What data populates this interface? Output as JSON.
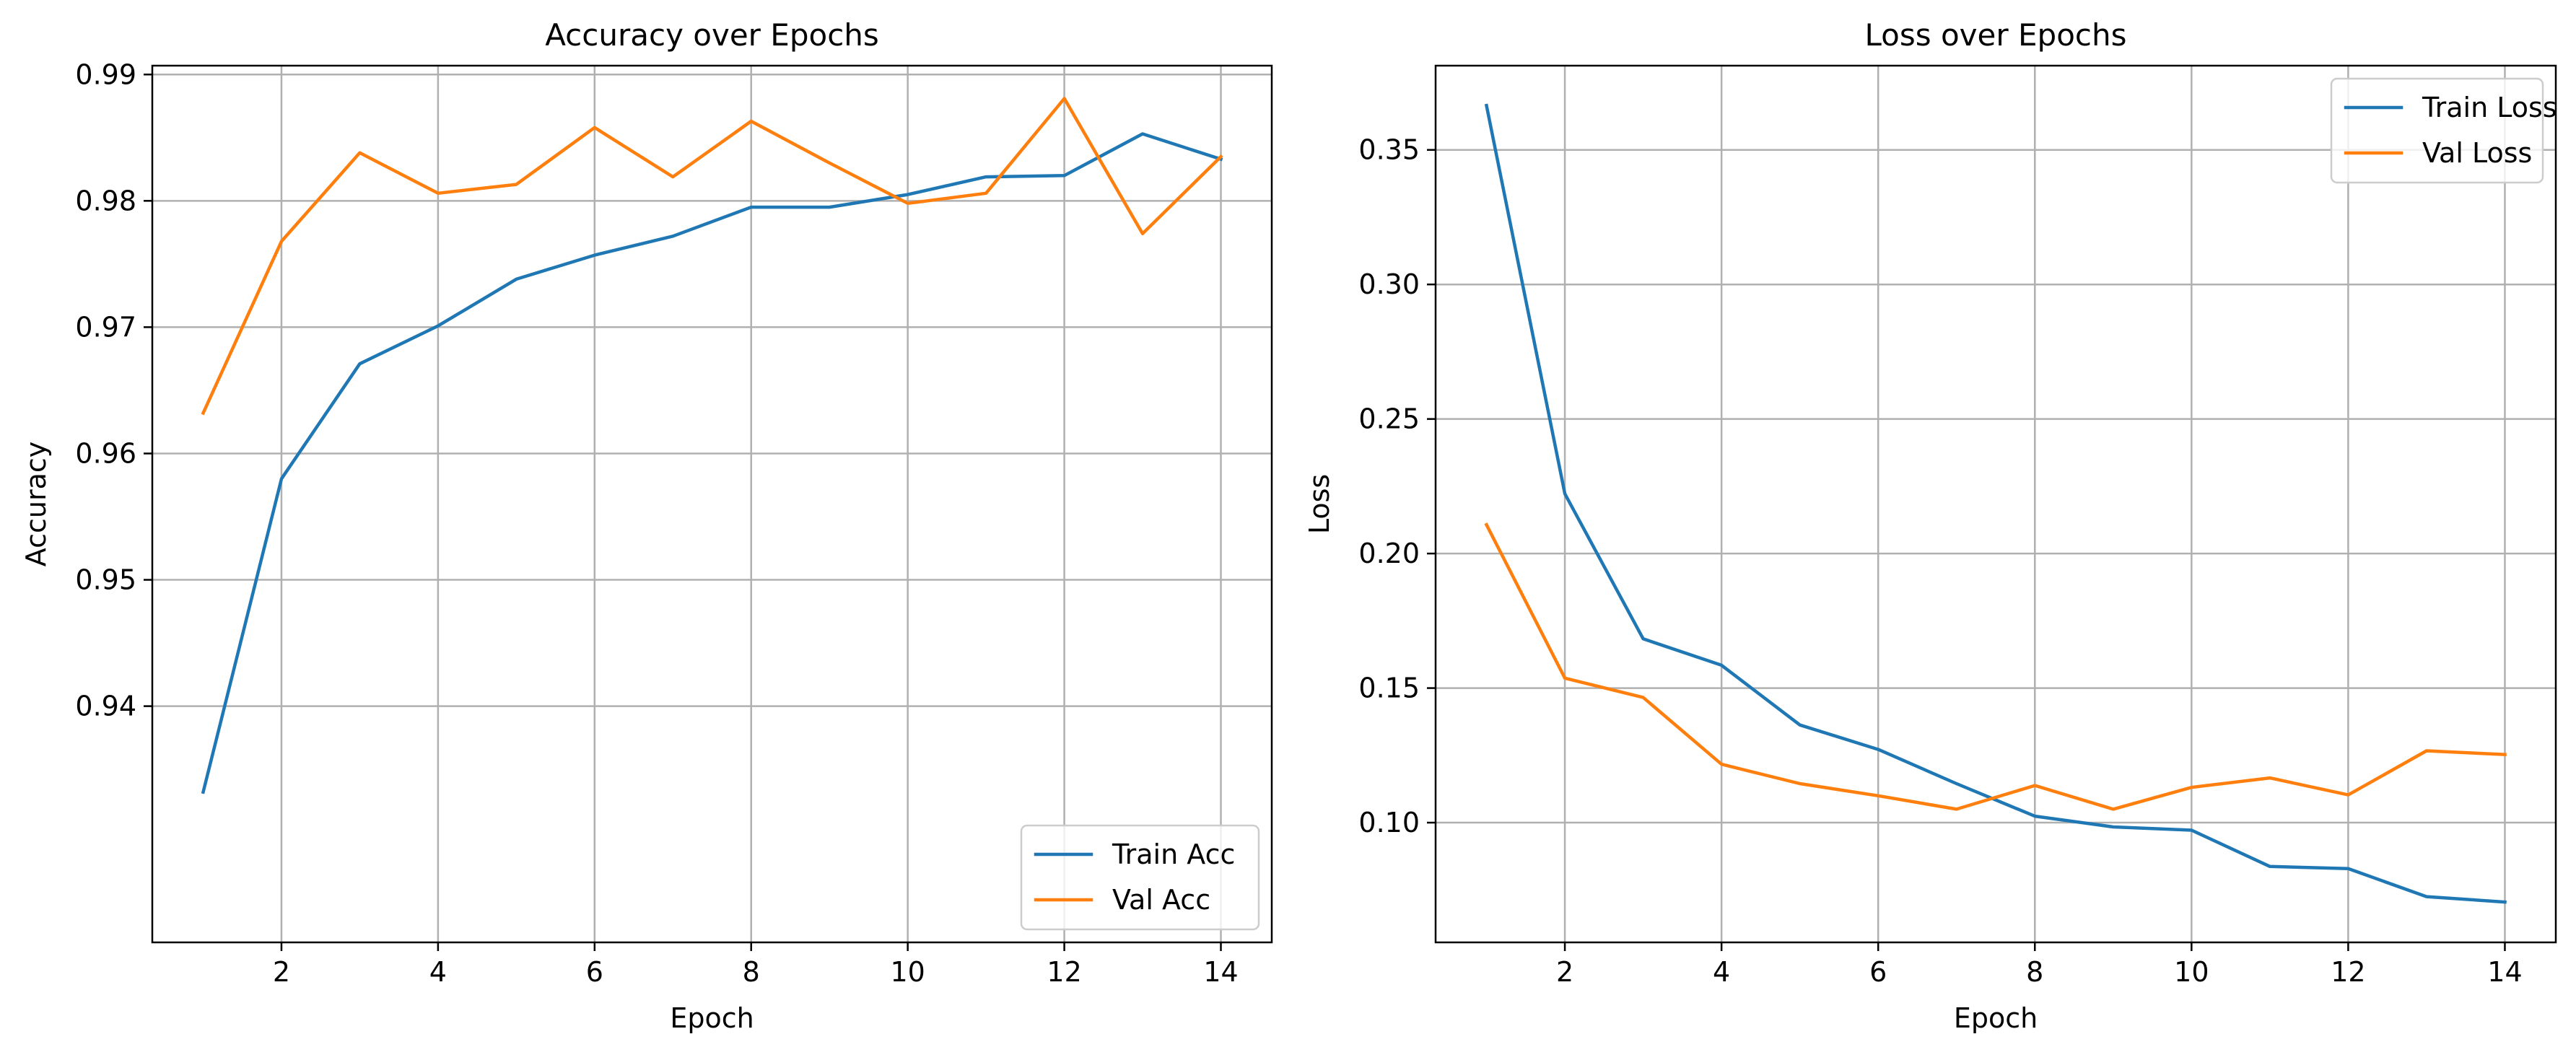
{
  "chart_data": [
    {
      "type": "line",
      "title": "Accuracy over Epochs",
      "xlabel": "Epoch",
      "ylabel": "Accuracy",
      "xlim": [
        0.35,
        14.65
      ],
      "ylim": [
        0.9213,
        0.9907
      ],
      "xticks": [
        2,
        4,
        6,
        8,
        10,
        12,
        14
      ],
      "yticks": [
        0.94,
        0.95,
        0.96,
        0.97,
        0.98,
        0.99
      ],
      "ytick_labels": [
        "0.94",
        "0.95",
        "0.96",
        "0.97",
        "0.98",
        "0.99"
      ],
      "grid": true,
      "legend_position": "lower-right",
      "x": [
        1,
        2,
        3,
        4,
        5,
        6,
        7,
        8,
        9,
        10,
        11,
        12,
        13,
        14
      ],
      "series": [
        {
          "name": "Train Acc",
          "color": "#1f77b4",
          "values": [
            0.9332,
            0.958,
            0.9671,
            0.9701,
            0.9738,
            0.9757,
            0.9772,
            0.9795,
            0.9795,
            0.9805,
            0.9819,
            0.982,
            0.9853,
            0.9833
          ]
        },
        {
          "name": "Val Acc",
          "color": "#ff7f0e",
          "values": [
            0.9632,
            0.9768,
            0.9838,
            0.9806,
            0.9813,
            0.9858,
            0.9819,
            0.9863,
            0.983,
            0.9798,
            0.9806,
            0.9881,
            0.9774,
            0.9835
          ]
        }
      ]
    },
    {
      "type": "line",
      "title": "Loss over Epochs",
      "xlabel": "Epoch",
      "ylabel": "Loss",
      "xlim": [
        0.35,
        14.65
      ],
      "ylim": [
        0.0555,
        0.3813
      ],
      "xticks": [
        2,
        4,
        6,
        8,
        10,
        12,
        14
      ],
      "yticks": [
        0.1,
        0.15,
        0.2,
        0.25,
        0.3,
        0.35
      ],
      "ytick_labels": [
        "0.10",
        "0.15",
        "0.20",
        "0.25",
        "0.30",
        "0.35"
      ],
      "grid": true,
      "legend_position": "upper-right",
      "x": [
        1,
        2,
        3,
        4,
        5,
        6,
        7,
        8,
        9,
        10,
        11,
        12,
        13,
        14
      ],
      "series": [
        {
          "name": "Train Loss",
          "color": "#1f77b4",
          "values": [
            0.3665,
            0.2222,
            0.1683,
            0.1585,
            0.1363,
            0.1272,
            0.1145,
            0.1024,
            0.0984,
            0.0972,
            0.0837,
            0.0829,
            0.0725,
            0.0705
          ]
        },
        {
          "name": "Val Loss",
          "color": "#ff7f0e",
          "values": [
            0.2107,
            0.1537,
            0.1465,
            0.1217,
            0.1145,
            0.11,
            0.105,
            0.1138,
            0.105,
            0.1131,
            0.1166,
            0.1103,
            0.1267,
            0.1253
          ]
        }
      ]
    }
  ]
}
